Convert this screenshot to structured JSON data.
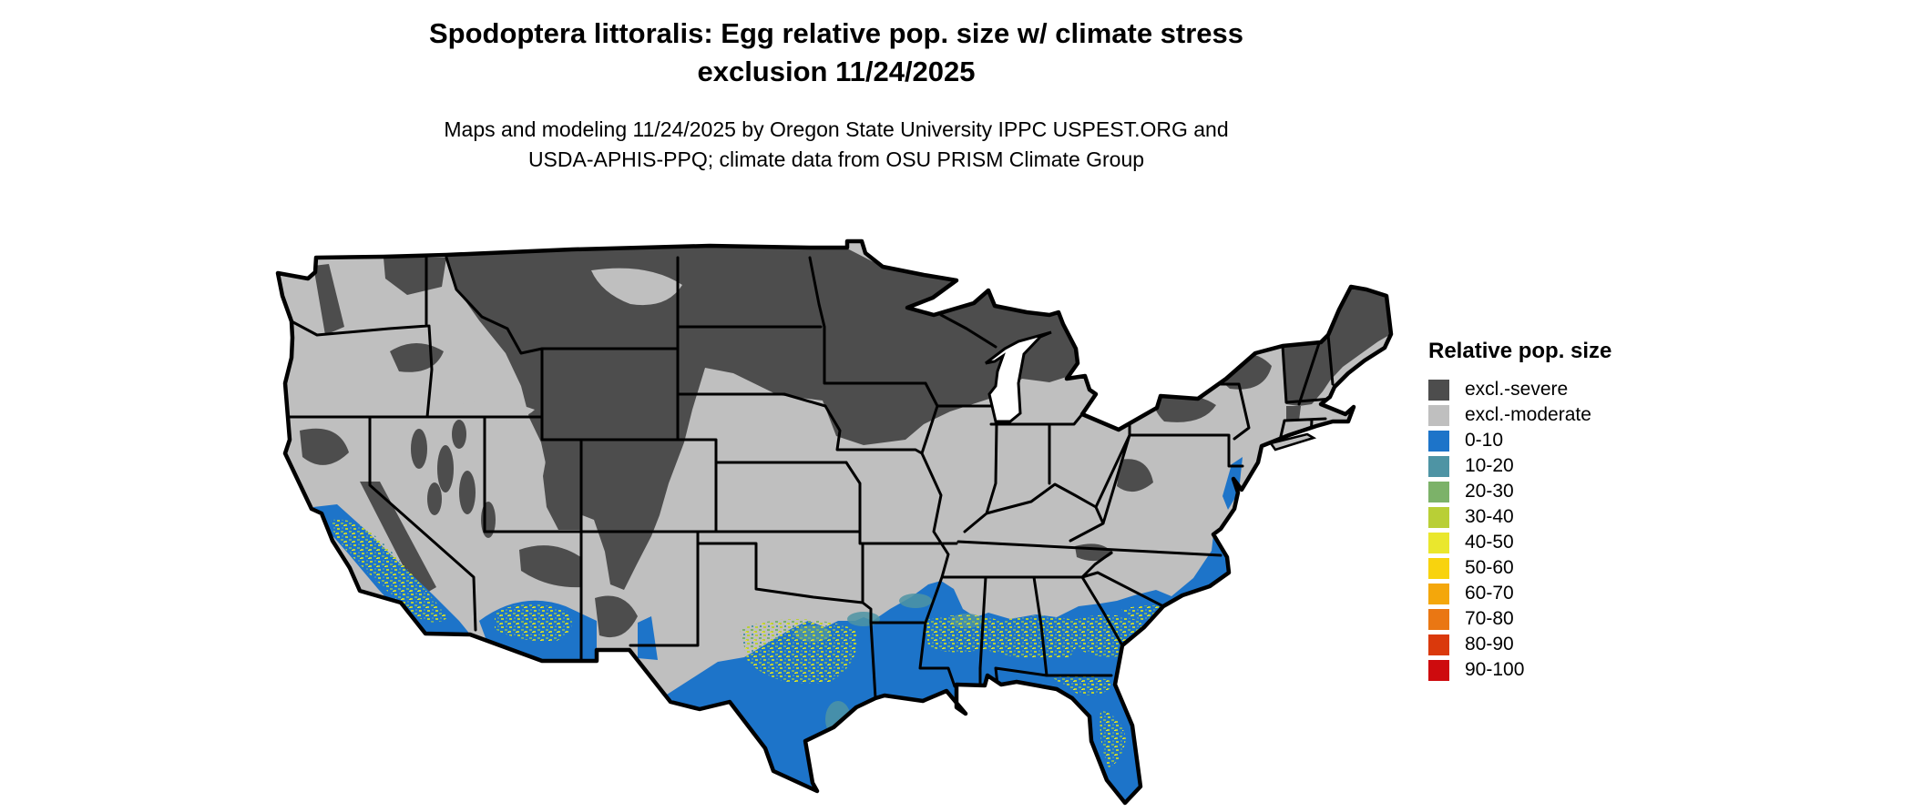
{
  "title": {
    "line1": "Spodoptera littoralis: Egg relative pop. size w/ climate stress",
    "line2": "exclusion 11/24/2025"
  },
  "subtitle": {
    "line1": "Maps and modeling 11/24/2025 by Oregon State University IPPC USPEST.ORG and",
    "line2": "USDA-APHIS-PPQ; climate data from OSU PRISM Climate Group"
  },
  "legend": {
    "title": "Relative pop. size",
    "items": [
      {
        "label": "excl.-severe",
        "color": "#4d4d4d"
      },
      {
        "label": "excl.-moderate",
        "color": "#bfbfbf"
      },
      {
        "label": "0-10",
        "color": "#1d74c9"
      },
      {
        "label": "10-20",
        "color": "#4e94a4"
      },
      {
        "label": "20-30",
        "color": "#7cb269"
      },
      {
        "label": "30-40",
        "color": "#b9cf36"
      },
      {
        "label": "40-50",
        "color": "#eae72d"
      },
      {
        "label": "50-60",
        "color": "#f8d30e"
      },
      {
        "label": "60-70",
        "color": "#f4a70b"
      },
      {
        "label": "70-80",
        "color": "#ea7713"
      },
      {
        "label": "80-90",
        "color": "#da390c"
      },
      {
        "label": "90-100",
        "color": "#ce0b0e"
      }
    ]
  },
  "map": {
    "colors": {
      "excl_severe": "#4d4d4d",
      "excl_moderate": "#bfbfbf",
      "v0_10": "#1d74c9",
      "v10_20": "#4e94a4",
      "v20_30": "#7cb269",
      "v30_40": "#b9cf36",
      "v40_50": "#eae72d",
      "border": "#000000",
      "water": "#ffffff"
    }
  }
}
